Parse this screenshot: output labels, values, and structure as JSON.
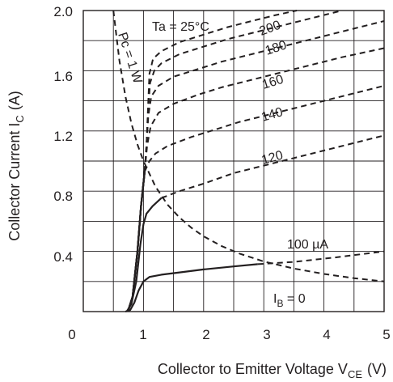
{
  "chart_data": {
    "type": "line",
    "xlabel_main": "Collector to Emitter Voltage  V",
    "xlabel_sub": "CE",
    "xlabel_unit": "(V)",
    "ylabel_main": "Collector Current  I",
    "ylabel_sub": "C",
    "ylabel_unit": "(A)",
    "xlim": [
      0,
      5
    ],
    "ylim": [
      0,
      2.0
    ],
    "x_ticks": [
      "0",
      "1",
      "2",
      "3",
      "4",
      "5"
    ],
    "y_ticks": [
      "0.4",
      "0.8",
      "1.2",
      "1.6",
      "2.0"
    ],
    "grid": true,
    "annotation_ta": "Ta = 25°C",
    "annotation_pc": "Pc = 1 W",
    "series": [
      {
        "name": "I_B = 0",
        "label_main": "I",
        "label_sub": "B",
        "label_suffix": " = 0",
        "solid": [
          [
            0.7,
            0.0
          ],
          [
            0.78,
            0.01
          ],
          [
            0.85,
            0.06
          ],
          [
            0.92,
            0.14
          ],
          [
            1.0,
            0.2
          ],
          [
            1.1,
            0.23
          ],
          [
            1.3,
            0.245
          ],
          [
            1.6,
            0.26
          ],
          [
            2.0,
            0.28
          ],
          [
            2.5,
            0.3
          ],
          [
            2.9,
            0.315
          ]
        ],
        "dashed": [
          [
            2.9,
            0.315
          ],
          [
            3.5,
            0.33
          ],
          [
            4.2,
            0.36
          ],
          [
            5.0,
            0.4
          ]
        ]
      },
      {
        "name": "100 µA",
        "label": "100 µA",
        "solid": [
          [
            0.72,
            0.0
          ],
          [
            0.8,
            0.05
          ],
          [
            0.88,
            0.2
          ],
          [
            0.95,
            0.45
          ],
          [
            1.0,
            0.58
          ],
          [
            1.05,
            0.65
          ],
          [
            1.15,
            0.7
          ],
          [
            1.3,
            0.755
          ]
        ],
        "dashed": [
          [
            1.3,
            0.755
          ],
          [
            1.6,
            0.8
          ],
          [
            2.0,
            0.85
          ],
          [
            2.5,
            0.92
          ],
          [
            3.0,
            0.97
          ],
          [
            3.5,
            1.02
          ],
          [
            4.0,
            1.07
          ],
          [
            4.5,
            1.12
          ],
          [
            5.0,
            1.17
          ]
        ]
      },
      {
        "name": "120",
        "label": "120",
        "solid": [
          [
            0.74,
            0.0
          ],
          [
            0.82,
            0.1
          ],
          [
            0.9,
            0.4
          ],
          [
            0.96,
            0.7
          ],
          [
            1.02,
            0.93
          ]
        ],
        "dashed": [
          [
            1.02,
            0.93
          ],
          [
            1.1,
            1.0
          ],
          [
            1.2,
            1.05
          ],
          [
            1.4,
            1.1
          ],
          [
            1.8,
            1.16
          ],
          [
            2.2,
            1.21
          ],
          [
            2.6,
            1.26
          ],
          [
            3.0,
            1.3
          ],
          [
            3.5,
            1.35
          ],
          [
            4.0,
            1.4
          ],
          [
            4.5,
            1.45
          ],
          [
            5.0,
            1.5
          ]
        ]
      },
      {
        "name": "140",
        "label": "140",
        "solid": [
          [
            0.74,
            0.0
          ],
          [
            0.82,
            0.1
          ],
          [
            0.9,
            0.4
          ],
          [
            0.96,
            0.7
          ],
          [
            1.02,
            0.93
          ]
        ],
        "dashed": [
          [
            1.02,
            0.93
          ],
          [
            1.06,
            1.1
          ],
          [
            1.12,
            1.23
          ],
          [
            1.25,
            1.32
          ],
          [
            1.5,
            1.38
          ],
          [
            1.9,
            1.44
          ],
          [
            2.3,
            1.49
          ],
          [
            2.8,
            1.54
          ],
          [
            3.3,
            1.59
          ],
          [
            3.8,
            1.64
          ],
          [
            4.3,
            1.69
          ],
          [
            5.0,
            1.75
          ]
        ]
      },
      {
        "name": "160",
        "label": "160",
        "solid": [
          [
            0.74,
            0.0
          ],
          [
            0.82,
            0.1
          ],
          [
            0.9,
            0.4
          ],
          [
            0.96,
            0.7
          ],
          [
            1.02,
            0.93
          ]
        ],
        "dashed": [
          [
            1.02,
            0.93
          ],
          [
            1.05,
            1.1
          ],
          [
            1.08,
            1.3
          ],
          [
            1.13,
            1.43
          ],
          [
            1.25,
            1.5
          ],
          [
            1.5,
            1.56
          ],
          [
            1.9,
            1.61
          ],
          [
            2.3,
            1.66
          ],
          [
            2.7,
            1.7
          ],
          [
            3.2,
            1.75
          ],
          [
            3.7,
            1.8
          ],
          [
            4.3,
            1.86
          ],
          [
            5.0,
            1.93
          ]
        ]
      },
      {
        "name": "180",
        "label": "180",
        "solid": [
          [
            0.74,
            0.0
          ],
          [
            0.82,
            0.1
          ],
          [
            0.9,
            0.4
          ],
          [
            0.96,
            0.7
          ],
          [
            1.02,
            0.93
          ]
        ],
        "dashed": [
          [
            1.02,
            0.93
          ],
          [
            1.05,
            1.1
          ],
          [
            1.08,
            1.35
          ],
          [
            1.11,
            1.52
          ],
          [
            1.18,
            1.6
          ],
          [
            1.3,
            1.65
          ],
          [
            1.6,
            1.71
          ],
          [
            2.0,
            1.76
          ],
          [
            2.4,
            1.81
          ],
          [
            2.8,
            1.85
          ],
          [
            3.2,
            1.89
          ],
          [
            3.7,
            1.94
          ],
          [
            4.2,
            1.99
          ],
          [
            4.3,
            2.0
          ]
        ]
      },
      {
        "name": "200",
        "label": "200",
        "solid": [
          [
            0.74,
            0.0
          ],
          [
            0.82,
            0.1
          ],
          [
            0.9,
            0.4
          ],
          [
            0.96,
            0.7
          ],
          [
            1.02,
            0.93
          ]
        ],
        "dashed": [
          [
            1.02,
            0.93
          ],
          [
            1.05,
            1.1
          ],
          [
            1.08,
            1.4
          ],
          [
            1.1,
            1.58
          ],
          [
            1.16,
            1.68
          ],
          [
            1.3,
            1.73
          ],
          [
            1.6,
            1.79
          ],
          [
            2.0,
            1.84
          ],
          [
            2.4,
            1.89
          ],
          [
            2.8,
            1.93
          ],
          [
            3.2,
            1.97
          ],
          [
            3.55,
            2.0
          ]
        ]
      },
      {
        "name": "Pc = 1 W",
        "dashed": [
          [
            0.5,
            2.0
          ],
          [
            0.6,
            1.67
          ],
          [
            0.7,
            1.43
          ],
          [
            0.8,
            1.25
          ],
          [
            0.9,
            1.11
          ],
          [
            1.0,
            1.0
          ],
          [
            1.2,
            0.83
          ],
          [
            1.4,
            0.71
          ],
          [
            1.6,
            0.625
          ],
          [
            1.8,
            0.556
          ],
          [
            2.0,
            0.5
          ],
          [
            2.3,
            0.435
          ],
          [
            2.6,
            0.385
          ],
          [
            3.0,
            0.333
          ],
          [
            3.5,
            0.286
          ],
          [
            4.0,
            0.25
          ],
          [
            4.5,
            0.222
          ],
          [
            5.0,
            0.2
          ]
        ]
      }
    ]
  }
}
